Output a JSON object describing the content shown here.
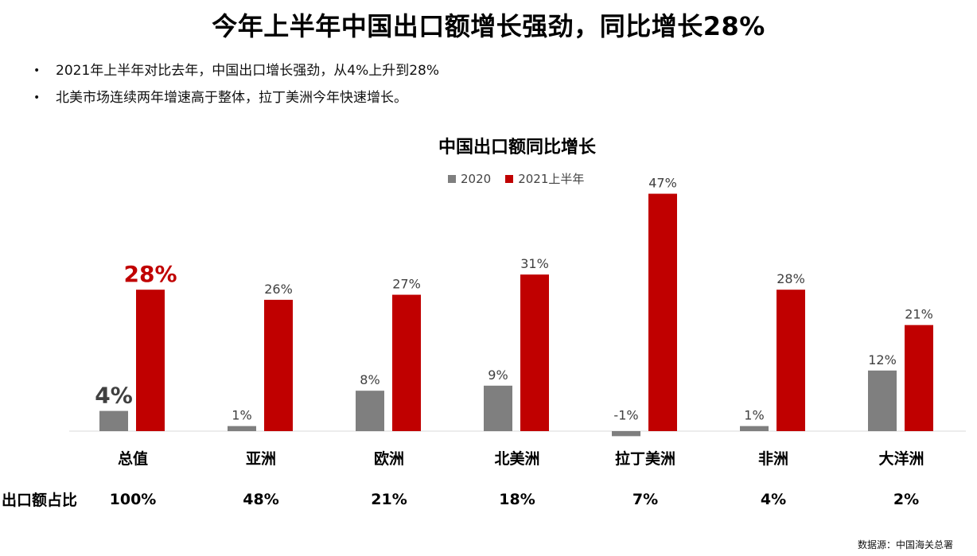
{
  "title": "今年上半年中国出口额增长强劲，同比增长28%",
  "bullets": [
    "2021年上半年对比去年，中国出口增长强劲，从4%上升到28%",
    "北美市场连续两年增速高于整体，拉丁美洲今年快速增长。"
  ],
  "share_label": "出口额占比",
  "source": "数据源：中国海关总署",
  "chart_data": {
    "type": "bar",
    "title": "中国出口额同比增长",
    "categories": [
      "总值",
      "亚洲",
      "欧洲",
      "北美洲",
      "拉丁美洲",
      "非洲",
      "大洋洲"
    ],
    "series": [
      {
        "name": "2020",
        "color": "#7f7f7f",
        "values": [
          4,
          1,
          8,
          9,
          -1,
          1,
          12
        ],
        "labels": [
          "4%",
          "1%",
          "8%",
          "9%",
          "-1%",
          "1%",
          "12%"
        ]
      },
      {
        "name": "2021上半年",
        "color": "#c00000",
        "values": [
          28,
          26,
          27,
          31,
          47,
          28,
          21
        ],
        "labels": [
          "28%",
          "26%",
          "27%",
          "31%",
          "47%",
          "28%",
          "21%"
        ]
      }
    ],
    "export_share": [
      "100%",
      "48%",
      "21%",
      "18%",
      "7%",
      "4%",
      "2%"
    ],
    "ylabel": "",
    "xlabel": "",
    "legend_position": "top",
    "grid": false,
    "highlight_first_category": true
  }
}
